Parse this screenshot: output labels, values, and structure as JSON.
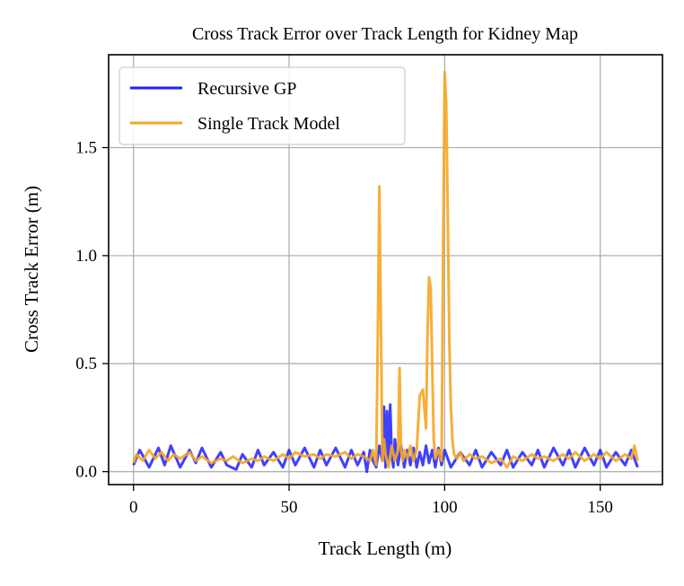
{
  "chart_data": {
    "type": "line",
    "title": "Cross Track Error over Track Length for Kidney Map",
    "xlabel": "Track Length (m)",
    "ylabel": "Cross Track Error (m)",
    "xlim": [
      -8,
      170
    ],
    "ylim": [
      -0.06,
      1.93
    ],
    "xticks": [
      0,
      50,
      100,
      150
    ],
    "yticks": [
      0.0,
      0.5,
      1.0,
      1.5
    ],
    "xtick_labels": [
      "0",
      "50",
      "100",
      "150"
    ],
    "ytick_labels": [
      "0.0",
      "0.5",
      "1.0",
      "1.5"
    ],
    "grid": true,
    "legend_position": "top-left",
    "series": [
      {
        "name": "Recursive GP",
        "color": "#1f1fff",
        "x": [
          0,
          2,
          5,
          8,
          10,
          12,
          15,
          18,
          20,
          22,
          25,
          28,
          30,
          33,
          35,
          38,
          40,
          42,
          45,
          48,
          50,
          52,
          55,
          58,
          60,
          62,
          65,
          68,
          70,
          72,
          74,
          75,
          76,
          77,
          78,
          79,
          80,
          80.5,
          81,
          81.5,
          82,
          82.5,
          83,
          83.5,
          84,
          85,
          86,
          87,
          88,
          89,
          90,
          91,
          92,
          93,
          94,
          95,
          96,
          97,
          98,
          99,
          100,
          102,
          105,
          108,
          110,
          112,
          115,
          118,
          120,
          122,
          125,
          128,
          130,
          132,
          135,
          138,
          140,
          142,
          145,
          148,
          150,
          152,
          155,
          158,
          160,
          162
        ],
        "y": [
          0.03,
          0.1,
          0.02,
          0.11,
          0.03,
          0.12,
          0.02,
          0.1,
          0.04,
          0.11,
          0.02,
          0.09,
          0.03,
          0.01,
          0.08,
          0.02,
          0.1,
          0.03,
          0.09,
          0.02,
          0.1,
          0.03,
          0.11,
          0.02,
          0.1,
          0.03,
          0.11,
          0.02,
          0.1,
          0.03,
          0.09,
          0.0,
          0.1,
          0.05,
          0.02,
          0.12,
          0.05,
          0.3,
          0.02,
          0.28,
          0.05,
          0.31,
          0.08,
          0.02,
          0.15,
          0.03,
          0.12,
          0.02,
          0.1,
          0.03,
          0.11,
          0.02,
          0.09,
          0.03,
          0.12,
          0.04,
          0.1,
          0.02,
          0.11,
          0.03,
          0.1,
          0.02,
          0.09,
          0.03,
          0.1,
          0.02,
          0.09,
          0.03,
          0.1,
          0.02,
          0.09,
          0.03,
          0.1,
          0.02,
          0.11,
          0.03,
          0.1,
          0.02,
          0.11,
          0.03,
          0.1,
          0.02,
          0.09,
          0.03,
          0.1,
          0.02
        ]
      },
      {
        "name": "Single Track Model",
        "color": "#f5a623",
        "x": [
          0,
          1,
          3,
          5,
          7,
          9,
          11,
          13,
          15,
          18,
          20,
          22,
          25,
          28,
          30,
          32,
          35,
          38,
          40,
          42,
          45,
          48,
          50,
          52,
          55,
          58,
          60,
          62,
          65,
          68,
          70,
          72,
          74,
          76,
          77,
          78,
          78.5,
          79,
          79.5,
          80,
          80.5,
          81,
          82,
          83,
          84,
          85,
          85.5,
          86,
          86.5,
          87,
          88,
          89,
          90,
          91,
          92,
          93,
          94,
          94.5,
          95,
          95.5,
          96,
          96.5,
          97,
          98,
          99,
          99.5,
          100,
          100.5,
          101,
          101.5,
          102,
          102.5,
          103,
          104,
          105,
          106,
          108,
          110,
          112,
          115,
          118,
          120,
          122,
          125,
          128,
          130,
          132,
          135,
          138,
          140,
          142,
          145,
          148,
          150,
          152,
          155,
          158,
          160,
          161,
          162
        ],
        "y": [
          0.04,
          0.08,
          0.05,
          0.1,
          0.06,
          0.09,
          0.05,
          0.08,
          0.06,
          0.09,
          0.05,
          0.07,
          0.04,
          0.06,
          0.05,
          0.07,
          0.04,
          0.06,
          0.05,
          0.07,
          0.05,
          0.08,
          0.06,
          0.09,
          0.07,
          0.08,
          0.06,
          0.08,
          0.07,
          0.09,
          0.06,
          0.08,
          0.07,
          0.05,
          0.1,
          0.03,
          0.6,
          1.32,
          0.7,
          0.05,
          0.15,
          0.08,
          0.02,
          0.12,
          0.05,
          0.1,
          0.48,
          0.1,
          0.05,
          0.1,
          0.06,
          0.12,
          0.05,
          0.1,
          0.35,
          0.38,
          0.2,
          0.65,
          0.9,
          0.85,
          0.5,
          0.15,
          0.06,
          0.1,
          0.05,
          1.0,
          1.85,
          1.7,
          1.2,
          0.6,
          0.3,
          0.15,
          0.08,
          0.06,
          0.09,
          0.05,
          0.08,
          0.06,
          0.07,
          0.04,
          0.06,
          0.02,
          0.07,
          0.05,
          0.08,
          0.06,
          0.07,
          0.05,
          0.08,
          0.06,
          0.09,
          0.05,
          0.08,
          0.06,
          0.09,
          0.05,
          0.08,
          0.06,
          0.12,
          0.05
        ]
      }
    ]
  }
}
